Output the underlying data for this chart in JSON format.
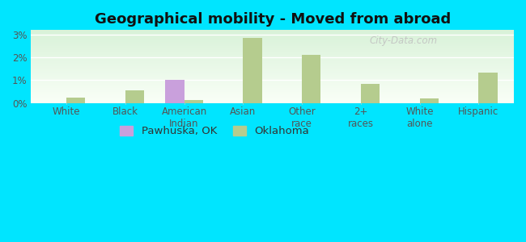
{
  "title": "Geographical mobility - Moved from abroad",
  "categories": [
    "White",
    "Black",
    "American\nIndian",
    "Asian",
    "Other\nrace",
    "2+\nraces",
    "White\nalone",
    "Hispanic"
  ],
  "pawhuska_values": [
    0.0,
    0.0,
    1.0,
    0.0,
    0.0,
    0.0,
    0.0,
    0.0
  ],
  "oklahoma_values": [
    0.22,
    0.55,
    0.12,
    2.85,
    2.1,
    0.82,
    0.2,
    1.35
  ],
  "pawhuska_color": "#c9a0dc",
  "oklahoma_color": "#b5cc8e",
  "background_color": "#00e5ff",
  "ylim": [
    0,
    3.2
  ],
  "yticks": [
    0,
    1,
    2,
    3
  ],
  "ytick_labels": [
    "0%",
    "1%",
    "2%",
    "3%"
  ],
  "legend_labels": [
    "Pawhuska, OK",
    "Oklahoma"
  ],
  "bar_width": 0.32,
  "title_fontsize": 13,
  "tick_fontsize": 8.5,
  "legend_fontsize": 9.5,
  "watermark": "City-Data.com"
}
